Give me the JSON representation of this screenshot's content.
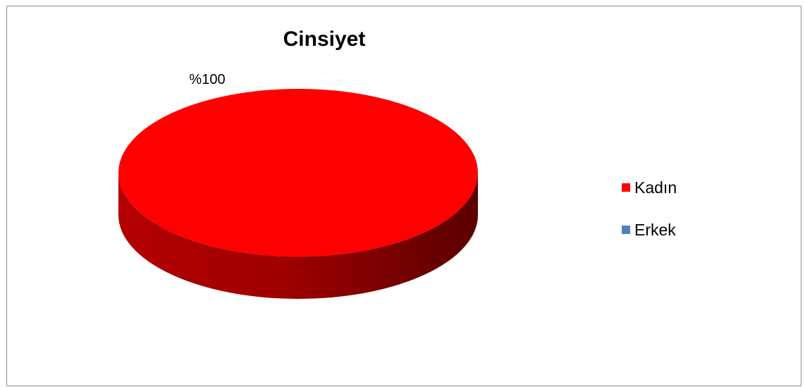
{
  "chart_data": {
    "type": "pie",
    "title": "Cinsiyet",
    "slices": [
      {
        "label": "Kadın",
        "value": 100,
        "color": "#fe0000"
      },
      {
        "label": "Erkek",
        "value": 0,
        "color": "#4f81bd"
      }
    ],
    "data_labels": [
      "%100"
    ],
    "legend": "right",
    "style": "3d"
  }
}
